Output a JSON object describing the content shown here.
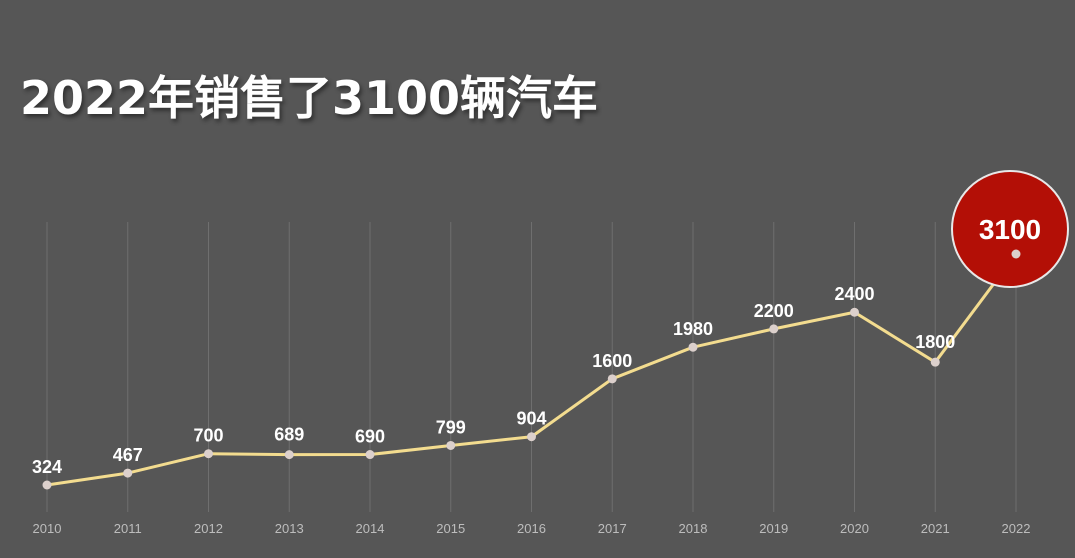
{
  "title": "2022年销售了3100辆汽车",
  "colors": {
    "background": "#565656",
    "line": "#f3dc8f",
    "point": "#dcd0cc",
    "highlight": "#b30f06",
    "highlight_border": "#e8e8e8"
  },
  "chart_data": {
    "type": "line",
    "title": "2022年销售了3100辆汽车",
    "xlabel": "",
    "ylabel": "",
    "categories": [
      "2010",
      "2011",
      "2012",
      "2013",
      "2014",
      "2015",
      "2016",
      "2017",
      "2018",
      "2019",
      "2020",
      "2021",
      "2022"
    ],
    "series": [
      {
        "values": [
          324,
          467,
          700,
          689,
          690,
          799,
          904,
          1600,
          1980,
          2200,
          2400,
          1800,
          3100
        ]
      }
    ],
    "highlight": {
      "category": "2022",
      "value": 3100
    },
    "grid": true,
    "legend": "none"
  }
}
